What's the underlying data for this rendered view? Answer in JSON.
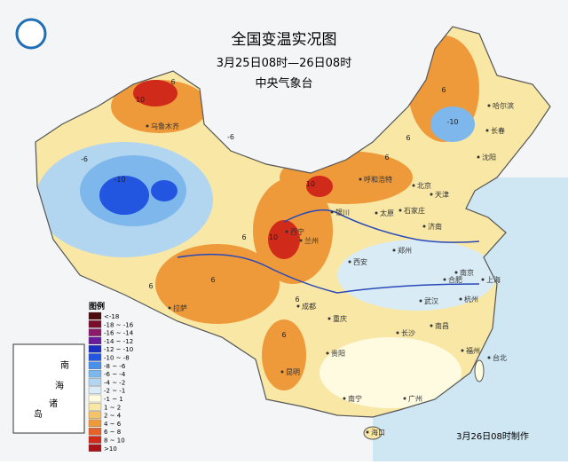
{
  "header": {
    "title": "全国变温实况图",
    "subtitle": "3月25日08时—26日08时",
    "issuer": "中央气象台"
  },
  "legend": {
    "title": "图例",
    "items": [
      {
        "label": "<-18",
        "color": "#4a0c0c"
      },
      {
        "label": "-18 ~ -16",
        "color": "#7a0e2a"
      },
      {
        "label": "-16 ~ -14",
        "color": "#8b1a6b"
      },
      {
        "label": "-14 ~ -12",
        "color": "#6a1b9a"
      },
      {
        "label": "-12 ~ -10",
        "color": "#1a2fbf"
      },
      {
        "label": "-10 ~ -8",
        "color": "#2255e0"
      },
      {
        "label": "-8 ~ -6",
        "color": "#4a8fe8"
      },
      {
        "label": "-6 ~ -4",
        "color": "#7db7ec"
      },
      {
        "label": "-4 ~ -2",
        "color": "#b3d6f0"
      },
      {
        "label": "-2 ~ -1",
        "color": "#d9ecf5"
      },
      {
        "label": "-1 ~ 1",
        "color": "#fffbe0"
      },
      {
        "label": "1 ~ 2",
        "color": "#f8e7a5"
      },
      {
        "label": "2 ~ 4",
        "color": "#f3c36a"
      },
      {
        "label": "4 ~ 6",
        "color": "#ef9a3a"
      },
      {
        "label": "6 ~ 8",
        "color": "#e5612a"
      },
      {
        "label": "8 ~ 10",
        "color": "#d02a1a"
      },
      {
        "label": ">10",
        "color": "#a8141a"
      }
    ]
  },
  "cities": [
    "乌鲁木齐",
    "哈尔滨",
    "长春",
    "沈阳",
    "呼和浩特",
    "北京",
    "天津",
    "石家庄",
    "太原",
    "济南",
    "银川",
    "西宁",
    "兰州",
    "郑州",
    "西安",
    "拉萨",
    "成都",
    "合肥",
    "南京",
    "上海",
    "武汉",
    "杭州",
    "重庆",
    "长沙",
    "南昌",
    "贵阳",
    "福州",
    "昆明",
    "南宁",
    "广州",
    "台北",
    "海口"
  ],
  "contour_labels": [
    10,
    6,
    -6,
    -10,
    -6,
    6,
    10,
    6,
    10,
    6,
    6,
    6,
    -10,
    6,
    6,
    6
  ],
  "inset": {
    "labels": [
      "南",
      "海",
      "诸",
      "岛"
    ]
  },
  "footer": "3月26日08时制作"
}
